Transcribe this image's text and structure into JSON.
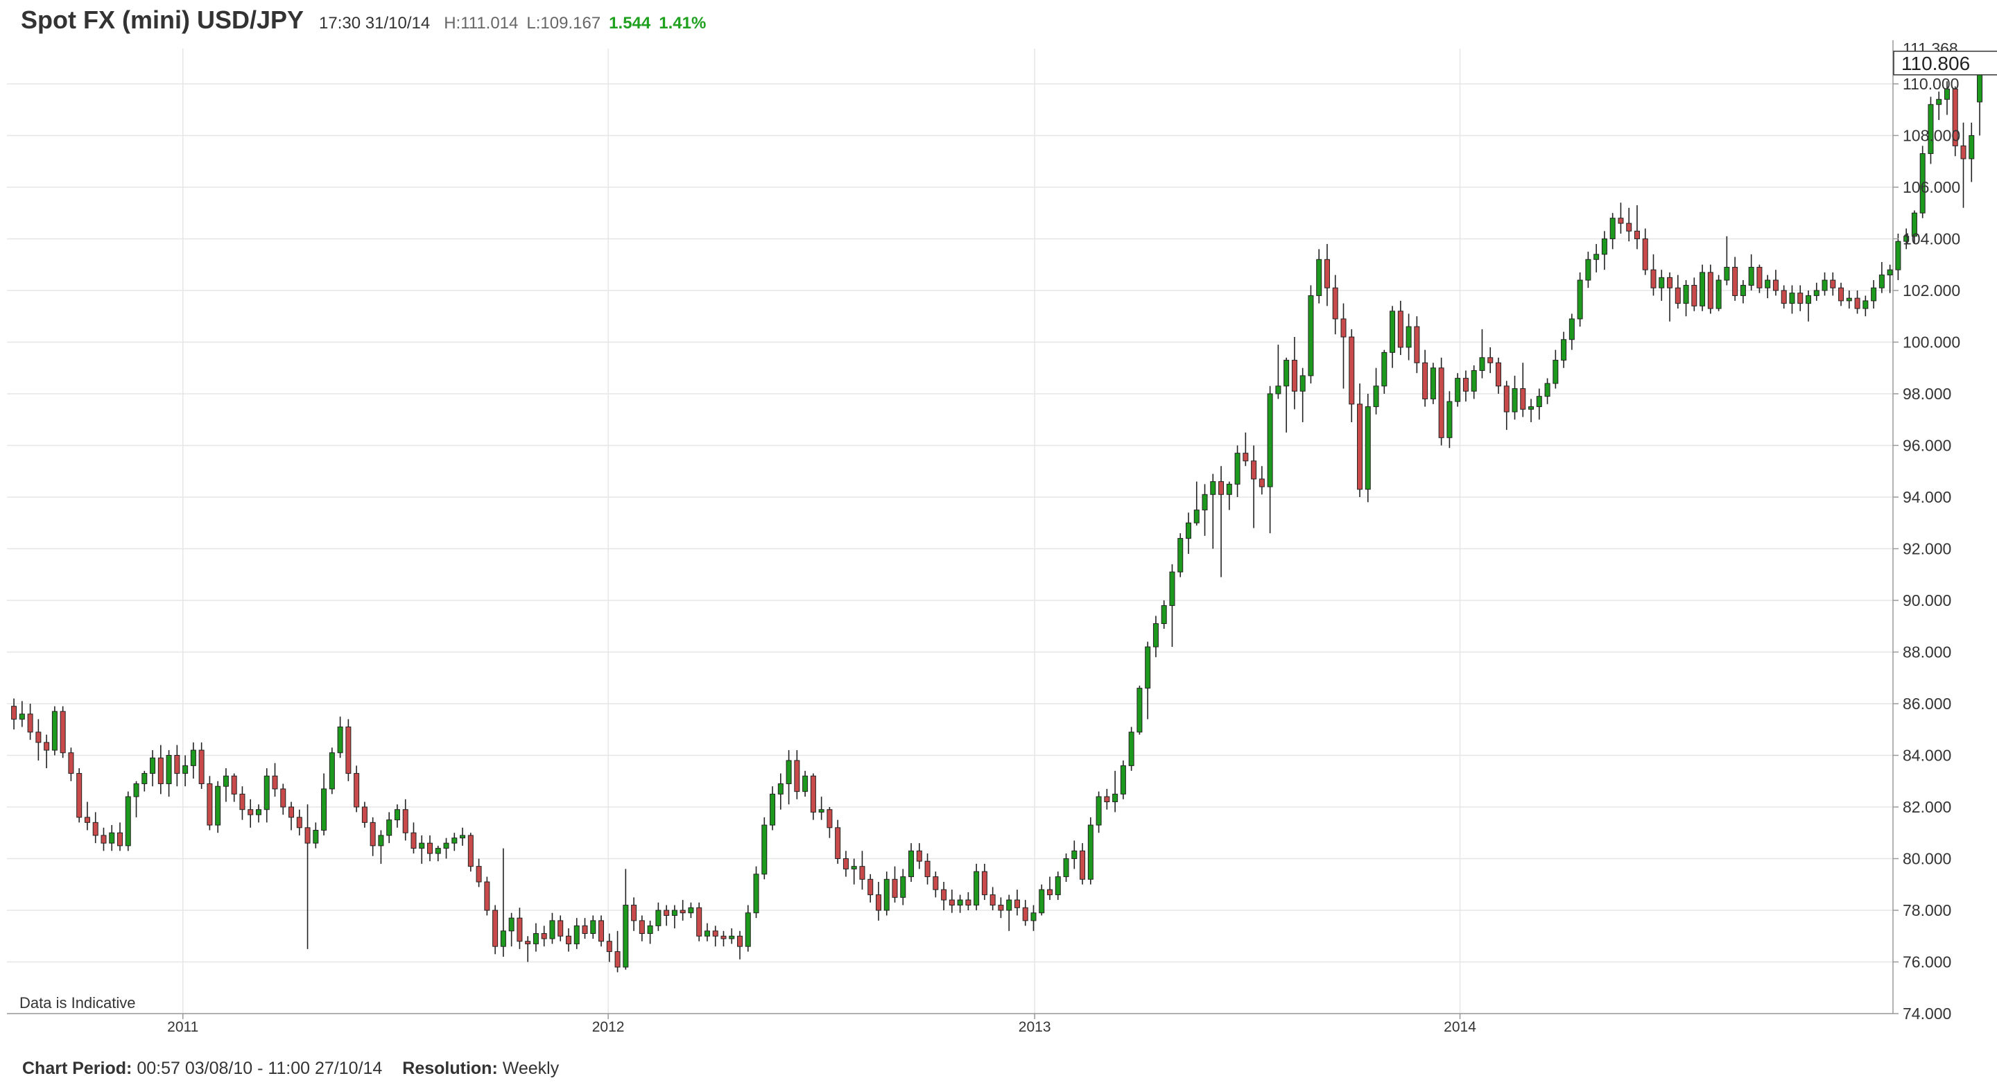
{
  "header": {
    "title": "Spot FX (mini) USD/JPY",
    "timestamp": "17:30 31/10/14",
    "high_label": "H:",
    "high": "111.014",
    "low_label": "L:",
    "low": "109.167",
    "change": "1.544",
    "change_pct": "1.41%"
  },
  "footer": {
    "period_label": "Chart Period:",
    "period": "00:57 03/08/10 - 11:00 27/10/14",
    "resolution_label": "Resolution:",
    "resolution": "Weekly"
  },
  "colors": {
    "up": "#1d9a1d",
    "down": "#c84a4a",
    "grid": "#e6e6e6",
    "change_positive": "#1fa01f"
  },
  "chart_data": {
    "type": "candlestick",
    "instrument": "Spot FX (mini) USD/JPY",
    "resolution": "Weekly",
    "annotation": "Data is Indicative",
    "current_value_label": "110.806",
    "top_clipped_label": "111.368",
    "ylim": [
      74,
      111.368
    ],
    "y_ticks": [
      "74.000",
      "76.000",
      "78.000",
      "80.000",
      "82.000",
      "84.000",
      "86.000",
      "88.000",
      "90.000",
      "92.000",
      "94.000",
      "96.000",
      "98.000",
      "100.000",
      "102.000",
      "104.000",
      "106.000",
      "108.000",
      "110.000"
    ],
    "x_ticks": [
      {
        "label": "2011",
        "x": "2011-01-01"
      },
      {
        "label": "2012",
        "x": "2012-01-01"
      },
      {
        "label": "2013",
        "x": "2013-01-01"
      },
      {
        "label": "2014",
        "x": "2014-01-01"
      }
    ],
    "x_range": [
      "2010-08-03",
      "2014-10-27"
    ],
    "week_start": "2010-08-09",
    "candles": [
      [
        85.9,
        86.2,
        85.0,
        85.4
      ],
      [
        85.4,
        86.1,
        85.1,
        85.6
      ],
      [
        85.6,
        86.0,
        84.6,
        84.9
      ],
      [
        84.9,
        85.4,
        83.8,
        84.5
      ],
      [
        84.5,
        84.8,
        83.5,
        84.2
      ],
      [
        84.2,
        85.9,
        84.0,
        85.7
      ],
      [
        85.7,
        85.9,
        83.9,
        84.1
      ],
      [
        84.1,
        84.3,
        83.0,
        83.3
      ],
      [
        83.3,
        83.5,
        81.4,
        81.6
      ],
      [
        81.6,
        82.2,
        81.1,
        81.4
      ],
      [
        81.4,
        81.8,
        80.6,
        80.9
      ],
      [
        80.9,
        81.2,
        80.3,
        80.6
      ],
      [
        80.6,
        81.3,
        80.3,
        81.0
      ],
      [
        81.0,
        81.4,
        80.3,
        80.5
      ],
      [
        80.5,
        82.6,
        80.3,
        82.4
      ],
      [
        82.4,
        83.0,
        81.6,
        82.9
      ],
      [
        82.9,
        83.4,
        82.6,
        83.3
      ],
      [
        83.3,
        84.2,
        82.8,
        83.9
      ],
      [
        83.9,
        84.4,
        82.5,
        82.9
      ],
      [
        82.9,
        84.2,
        82.4,
        84.0
      ],
      [
        84.0,
        84.4,
        82.8,
        83.3
      ],
      [
        83.3,
        84.0,
        82.8,
        83.6
      ],
      [
        83.6,
        84.5,
        83.1,
        84.2
      ],
      [
        84.2,
        84.5,
        82.7,
        82.9
      ],
      [
        82.9,
        83.2,
        81.1,
        81.3
      ],
      [
        81.3,
        83.0,
        81.0,
        82.8
      ],
      [
        82.8,
        83.5,
        82.2,
        83.2
      ],
      [
        83.2,
        83.3,
        82.2,
        82.5
      ],
      [
        82.5,
        82.8,
        81.5,
        81.9
      ],
      [
        81.9,
        82.3,
        81.2,
        81.7
      ],
      [
        81.7,
        82.1,
        81.4,
        81.9
      ],
      [
        81.9,
        83.5,
        81.4,
        83.2
      ],
      [
        83.2,
        83.7,
        82.4,
        82.7
      ],
      [
        82.7,
        82.9,
        81.7,
        82.0
      ],
      [
        82.0,
        82.2,
        81.1,
        81.6
      ],
      [
        81.6,
        81.9,
        80.9,
        81.2
      ],
      [
        81.2,
        82.1,
        76.5,
        80.6
      ],
      [
        80.6,
        81.4,
        80.4,
        81.1
      ],
      [
        81.1,
        83.3,
        80.9,
        82.7
      ],
      [
        82.7,
        84.3,
        82.5,
        84.1
      ],
      [
        84.1,
        85.5,
        83.9,
        85.1
      ],
      [
        85.1,
        85.4,
        83.0,
        83.3
      ],
      [
        83.3,
        83.6,
        81.8,
        82.0
      ],
      [
        82.0,
        82.2,
        81.2,
        81.4
      ],
      [
        81.4,
        81.6,
        80.1,
        80.5
      ],
      [
        80.5,
        81.1,
        79.8,
        80.9
      ],
      [
        80.9,
        81.8,
        80.6,
        81.5
      ],
      [
        81.5,
        82.1,
        81.2,
        81.9
      ],
      [
        81.9,
        82.3,
        80.7,
        81.0
      ],
      [
        81.0,
        81.4,
        80.2,
        80.4
      ],
      [
        80.4,
        80.9,
        79.8,
        80.6
      ],
      [
        80.6,
        80.9,
        79.9,
        80.2
      ],
      [
        80.2,
        80.5,
        79.9,
        80.4
      ],
      [
        80.4,
        80.8,
        80.0,
        80.6
      ],
      [
        80.6,
        81.0,
        80.3,
        80.8
      ],
      [
        80.8,
        81.2,
        80.5,
        80.9
      ],
      [
        80.9,
        81.0,
        79.5,
        79.7
      ],
      [
        79.7,
        80.0,
        78.9,
        79.1
      ],
      [
        79.1,
        79.3,
        77.8,
        78.0
      ],
      [
        78.0,
        78.2,
        76.3,
        76.6
      ],
      [
        76.6,
        80.4,
        76.2,
        77.2
      ],
      [
        77.2,
        77.9,
        76.6,
        77.7
      ],
      [
        77.7,
        78.1,
        76.5,
        76.8
      ],
      [
        76.8,
        77.0,
        76.0,
        76.7
      ],
      [
        76.7,
        77.5,
        76.4,
        77.1
      ],
      [
        77.1,
        77.4,
        76.6,
        76.9
      ],
      [
        76.9,
        77.9,
        76.7,
        77.6
      ],
      [
        77.6,
        77.8,
        76.8,
        77.0
      ],
      [
        77.0,
        77.3,
        76.4,
        76.7
      ],
      [
        76.7,
        77.7,
        76.5,
        77.4
      ],
      [
        77.4,
        77.7,
        76.9,
        77.1
      ],
      [
        77.1,
        77.8,
        76.9,
        77.6
      ],
      [
        77.6,
        77.8,
        76.6,
        76.8
      ],
      [
        76.8,
        77.1,
        76.0,
        76.4
      ],
      [
        76.4,
        77.2,
        75.6,
        75.8
      ],
      [
        75.8,
        79.6,
        75.7,
        78.2
      ],
      [
        78.2,
        78.5,
        77.2,
        77.6
      ],
      [
        77.6,
        77.8,
        76.8,
        77.1
      ],
      [
        77.1,
        77.6,
        76.7,
        77.4
      ],
      [
        77.4,
        78.3,
        77.2,
        78.0
      ],
      [
        78.0,
        78.2,
        77.4,
        77.8
      ],
      [
        77.8,
        78.2,
        77.3,
        78.0
      ],
      [
        78.0,
        78.4,
        77.6,
        77.9
      ],
      [
        77.9,
        78.3,
        77.7,
        78.1
      ],
      [
        78.1,
        78.3,
        76.8,
        77.0
      ],
      [
        77.0,
        77.5,
        76.8,
        77.2
      ],
      [
        77.2,
        77.4,
        76.6,
        77.0
      ],
      [
        77.0,
        77.2,
        76.6,
        76.9
      ],
      [
        76.9,
        77.3,
        76.7,
        77.0
      ],
      [
        77.0,
        77.2,
        76.1,
        76.6
      ],
      [
        76.6,
        78.2,
        76.4,
        77.9
      ],
      [
        77.9,
        79.7,
        77.7,
        79.4
      ],
      [
        79.4,
        81.6,
        79.2,
        81.3
      ],
      [
        81.3,
        82.8,
        81.1,
        82.5
      ],
      [
        82.5,
        83.3,
        81.9,
        82.9
      ],
      [
        82.9,
        84.2,
        82.1,
        83.8
      ],
      [
        83.8,
        84.2,
        82.3,
        82.6
      ],
      [
        82.6,
        83.4,
        82.4,
        83.2
      ],
      [
        83.2,
        83.3,
        81.5,
        81.8
      ],
      [
        81.8,
        82.4,
        81.5,
        81.9
      ],
      [
        81.9,
        82.0,
        80.8,
        81.2
      ],
      [
        81.2,
        81.5,
        79.8,
        80.0
      ],
      [
        80.0,
        80.3,
        79.3,
        79.6
      ],
      [
        79.6,
        80.0,
        79.0,
        79.7
      ],
      [
        79.7,
        80.3,
        78.8,
        79.2
      ],
      [
        79.2,
        79.4,
        78.3,
        78.6
      ],
      [
        78.6,
        79.1,
        77.6,
        78.0
      ],
      [
        78.0,
        79.5,
        77.8,
        79.2
      ],
      [
        79.2,
        79.7,
        78.3,
        78.5
      ],
      [
        78.5,
        79.6,
        78.2,
        79.3
      ],
      [
        79.3,
        80.6,
        79.1,
        80.3
      ],
      [
        80.3,
        80.6,
        79.6,
        79.9
      ],
      [
        79.9,
        80.2,
        79.0,
        79.3
      ],
      [
        79.3,
        79.5,
        78.5,
        78.8
      ],
      [
        78.8,
        79.1,
        78.0,
        78.4
      ],
      [
        78.4,
        78.8,
        77.9,
        78.2
      ],
      [
        78.2,
        78.6,
        77.9,
        78.4
      ],
      [
        78.4,
        78.7,
        78.0,
        78.2
      ],
      [
        78.2,
        79.8,
        78.0,
        79.5
      ],
      [
        79.5,
        79.8,
        78.4,
        78.6
      ],
      [
        78.6,
        78.9,
        78.0,
        78.2
      ],
      [
        78.2,
        78.5,
        77.7,
        78.0
      ],
      [
        78.0,
        78.6,
        77.2,
        78.4
      ],
      [
        78.4,
        78.8,
        77.8,
        78.1
      ],
      [
        78.1,
        78.4,
        77.4,
        77.6
      ],
      [
        77.6,
        78.2,
        77.2,
        77.9
      ],
      [
        77.9,
        79.0,
        77.8,
        78.8
      ],
      [
        78.8,
        79.3,
        78.4,
        78.6
      ],
      [
        78.6,
        79.5,
        78.4,
        79.3
      ],
      [
        79.3,
        80.2,
        79.1,
        80.0
      ],
      [
        80.0,
        80.7,
        79.6,
        80.3
      ],
      [
        80.3,
        80.6,
        79.0,
        79.2
      ],
      [
        79.2,
        81.6,
        79.0,
        81.3
      ],
      [
        81.3,
        82.6,
        81.0,
        82.4
      ],
      [
        82.4,
        82.7,
        81.9,
        82.2
      ],
      [
        82.2,
        83.4,
        81.8,
        82.5
      ],
      [
        82.5,
        83.8,
        82.3,
        83.6
      ],
      [
        83.6,
        85.1,
        83.4,
        84.9
      ],
      [
        84.9,
        86.7,
        84.8,
        86.6
      ],
      [
        86.6,
        88.4,
        85.4,
        88.2
      ],
      [
        88.2,
        89.4,
        87.8,
        89.1
      ],
      [
        89.1,
        90.0,
        88.9,
        89.8
      ],
      [
        89.8,
        91.4,
        88.2,
        91.1
      ],
      [
        91.1,
        92.6,
        90.9,
        92.4
      ],
      [
        92.4,
        93.4,
        91.8,
        93.0
      ],
      [
        93.0,
        94.6,
        92.9,
        93.5
      ],
      [
        93.5,
        94.5,
        92.5,
        94.1
      ],
      [
        94.1,
        94.9,
        92.0,
        94.6
      ],
      [
        94.6,
        95.2,
        90.9,
        94.1
      ],
      [
        94.1,
        94.6,
        93.5,
        94.5
      ],
      [
        94.5,
        96.0,
        94.0,
        95.7
      ],
      [
        95.7,
        96.5,
        95.2,
        95.4
      ],
      [
        95.4,
        96.0,
        92.8,
        94.7
      ],
      [
        94.7,
        95.2,
        94.1,
        94.4
      ],
      [
        94.4,
        98.3,
        92.6,
        98.0
      ],
      [
        98.0,
        99.9,
        97.8,
        98.3
      ],
      [
        98.3,
        99.4,
        96.5,
        99.3
      ],
      [
        99.3,
        100.2,
        97.4,
        98.1
      ],
      [
        98.1,
        99.0,
        96.9,
        98.7
      ],
      [
        98.7,
        102.2,
        98.4,
        101.8
      ],
      [
        101.8,
        103.6,
        101.5,
        103.2
      ],
      [
        103.2,
        103.8,
        101.4,
        102.1
      ],
      [
        102.1,
        102.6,
        100.3,
        100.9
      ],
      [
        100.9,
        101.5,
        98.2,
        100.2
      ],
      [
        100.2,
        100.5,
        96.9,
        97.6
      ],
      [
        97.6,
        98.4,
        94.0,
        94.3
      ],
      [
        94.3,
        98.0,
        93.8,
        97.5
      ],
      [
        97.5,
        99.0,
        97.2,
        98.3
      ],
      [
        98.3,
        99.7,
        98.0,
        99.6
      ],
      [
        99.6,
        101.4,
        99.0,
        101.2
      ],
      [
        101.2,
        101.6,
        99.5,
        99.8
      ],
      [
        99.8,
        101.1,
        99.3,
        100.6
      ],
      [
        100.6,
        101.0,
        98.8,
        99.2
      ],
      [
        99.2,
        99.7,
        97.5,
        97.8
      ],
      [
        97.8,
        99.2,
        97.6,
        99.0
      ],
      [
        99.0,
        99.4,
        96.0,
        96.3
      ],
      [
        96.3,
        98.1,
        95.9,
        97.7
      ],
      [
        97.7,
        98.8,
        97.5,
        98.6
      ],
      [
        98.6,
        98.9,
        97.7,
        98.1
      ],
      [
        98.1,
        99.1,
        97.8,
        98.9
      ],
      [
        98.9,
        100.5,
        98.6,
        99.4
      ],
      [
        99.4,
        99.8,
        98.8,
        99.2
      ],
      [
        99.2,
        99.4,
        98.0,
        98.3
      ],
      [
        98.3,
        98.5,
        96.6,
        97.3
      ],
      [
        97.3,
        98.7,
        97.0,
        98.2
      ],
      [
        98.2,
        99.2,
        97.1,
        97.4
      ],
      [
        97.4,
        97.8,
        96.9,
        97.5
      ],
      [
        97.5,
        98.2,
        97.0,
        97.9
      ],
      [
        97.9,
        98.6,
        97.6,
        98.4
      ],
      [
        98.4,
        99.7,
        98.2,
        99.3
      ],
      [
        99.3,
        100.4,
        99.0,
        100.1
      ],
      [
        100.1,
        101.1,
        99.7,
        100.9
      ],
      [
        100.9,
        102.7,
        100.6,
        102.4
      ],
      [
        102.4,
        103.5,
        102.1,
        103.2
      ],
      [
        103.2,
        103.8,
        102.7,
        103.4
      ],
      [
        103.4,
        104.3,
        102.8,
        104.0
      ],
      [
        104.0,
        105.0,
        103.6,
        104.8
      ],
      [
        104.8,
        105.4,
        104.2,
        104.6
      ],
      [
        104.6,
        105.2,
        103.9,
        104.3
      ],
      [
        104.3,
        105.3,
        103.6,
        104.0
      ],
      [
        104.0,
        104.4,
        102.6,
        102.8
      ],
      [
        102.8,
        103.4,
        101.8,
        102.1
      ],
      [
        102.1,
        102.8,
        101.6,
        102.5
      ],
      [
        102.5,
        102.7,
        100.8,
        102.1
      ],
      [
        102.1,
        102.6,
        101.3,
        101.5
      ],
      [
        101.5,
        102.4,
        101.0,
        102.2
      ],
      [
        102.2,
        102.5,
        101.2,
        101.4
      ],
      [
        101.4,
        103.0,
        101.2,
        102.7
      ],
      [
        102.7,
        103.0,
        101.1,
        101.3
      ],
      [
        101.3,
        102.6,
        101.2,
        102.4
      ],
      [
        102.4,
        104.1,
        102.2,
        102.9
      ],
      [
        102.9,
        103.3,
        101.6,
        101.8
      ],
      [
        101.8,
        102.4,
        101.5,
        102.2
      ],
      [
        102.2,
        103.4,
        102.0,
        102.9
      ],
      [
        102.9,
        103.0,
        101.9,
        102.1
      ],
      [
        102.1,
        102.6,
        101.7,
        102.4
      ],
      [
        102.4,
        102.8,
        101.8,
        102.0
      ],
      [
        102.0,
        102.2,
        101.3,
        101.5
      ],
      [
        101.5,
        102.2,
        101.1,
        101.9
      ],
      [
        101.9,
        102.2,
        101.2,
        101.5
      ],
      [
        101.5,
        102.0,
        100.8,
        101.8
      ],
      [
        101.8,
        102.3,
        101.6,
        102.0
      ],
      [
        102.0,
        102.7,
        101.8,
        102.4
      ],
      [
        102.4,
        102.7,
        101.8,
        102.1
      ],
      [
        102.1,
        102.3,
        101.4,
        101.6
      ],
      [
        101.6,
        102.0,
        101.3,
        101.7
      ],
      [
        101.7,
        102.0,
        101.1,
        101.3
      ],
      [
        101.3,
        101.8,
        101.0,
        101.6
      ],
      [
        101.6,
        102.4,
        101.3,
        102.1
      ],
      [
        102.1,
        103.1,
        101.9,
        102.6
      ],
      [
        102.6,
        103.0,
        101.9,
        102.8
      ],
      [
        102.8,
        104.2,
        102.4,
        103.9
      ],
      [
        103.9,
        104.4,
        103.6,
        104.1
      ],
      [
        104.1,
        105.1,
        103.8,
        105.0
      ],
      [
        105.0,
        107.6,
        104.8,
        107.3
      ],
      [
        107.3,
        109.5,
        106.9,
        109.2
      ],
      [
        109.2,
        109.7,
        108.6,
        109.4
      ],
      [
        109.4,
        110.1,
        108.8,
        109.8
      ],
      [
        109.8,
        109.9,
        107.2,
        107.6
      ],
      [
        107.6,
        108.5,
        105.2,
        107.1
      ],
      [
        107.1,
        108.5,
        106.2,
        108.0
      ],
      [
        109.3,
        111.0,
        108.0,
        110.8
      ]
    ]
  }
}
